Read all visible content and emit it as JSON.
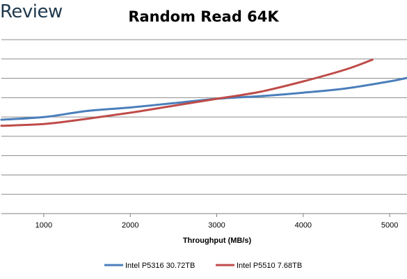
{
  "brand_text": "Review",
  "chart_data": {
    "type": "line",
    "title": "Random Read 64K",
    "xlabel": "Throughput (MB/s)",
    "ylabel": "",
    "xlim": [
      510,
      5200
    ],
    "ylim": [
      0,
      10
    ],
    "x_ticks": [
      1000,
      2000,
      3000,
      4000,
      5000
    ],
    "y_tick_labels_visible": false,
    "grid": "horizontal",
    "legend_position": "bottom",
    "series": [
      {
        "name": "Intel P5316 30.72TB",
        "color": "#4a7ebb",
        "points": [
          [
            510,
            5.4
          ],
          [
            1000,
            5.55
          ],
          [
            1500,
            5.9
          ],
          [
            2000,
            6.1
          ],
          [
            2500,
            6.35
          ],
          [
            3000,
            6.6
          ],
          [
            3500,
            6.75
          ],
          [
            4000,
            6.95
          ],
          [
            4500,
            7.2
          ],
          [
            5000,
            7.6
          ],
          [
            5200,
            7.8
          ]
        ]
      },
      {
        "name": "Intel P5510 7.68TB",
        "color": "#be4b48",
        "points": [
          [
            510,
            5.05
          ],
          [
            1000,
            5.15
          ],
          [
            1500,
            5.45
          ],
          [
            2000,
            5.8
          ],
          [
            2500,
            6.2
          ],
          [
            3000,
            6.6
          ],
          [
            3500,
            7.0
          ],
          [
            4000,
            7.6
          ],
          [
            4500,
            8.3
          ],
          [
            4800,
            8.85
          ]
        ]
      }
    ]
  }
}
